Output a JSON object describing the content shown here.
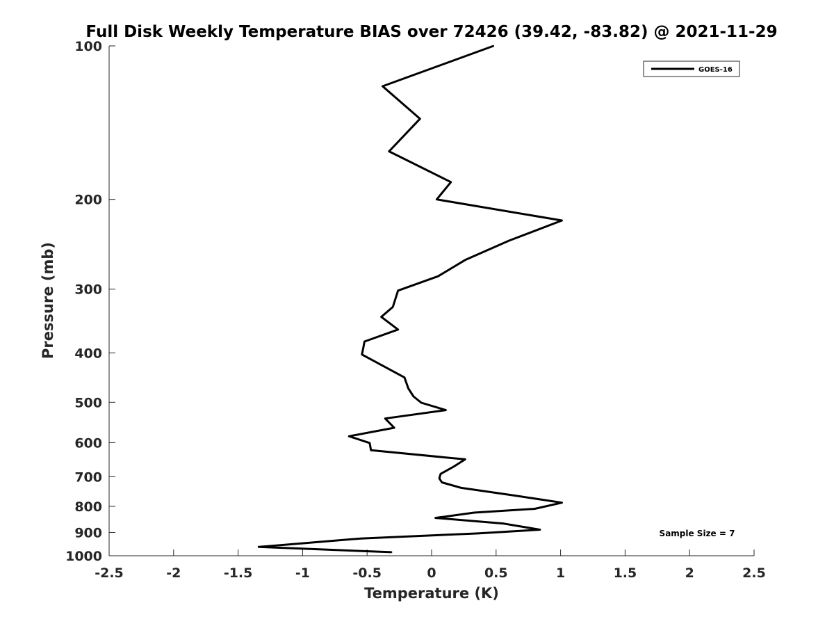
{
  "chart_data": {
    "type": "line",
    "title": "Full Disk Weekly Temperature BIAS over 72426 (39.42, -83.82) @ 2021-11-29",
    "xlabel": "Temperature (K)",
    "ylabel": "Pressure (mb)",
    "xlim": [
      -2.5,
      2.5
    ],
    "ylim": [
      100,
      1000
    ],
    "y_scale": "log",
    "y_reversed": true,
    "x_ticks": [
      "-2.5",
      "-2",
      "-1.5",
      "-1",
      "-0.5",
      "0",
      "0.5",
      "1",
      "1.5",
      "2",
      "2.5"
    ],
    "y_ticks": [
      "100",
      "200",
      "300",
      "400",
      "500",
      "600",
      "700",
      "800",
      "900",
      "1000"
    ],
    "grid": false,
    "legend_position": "top-right",
    "annotation": "Sample Size = 7",
    "series": [
      {
        "name": "GOES-16",
        "color": "#000000",
        "points": [
          {
            "x": 0.48,
            "y": 100
          },
          {
            "x": -0.38,
            "y": 120
          },
          {
            "x": -0.09,
            "y": 139
          },
          {
            "x": -0.33,
            "y": 161
          },
          {
            "x": 0.15,
            "y": 185
          },
          {
            "x": 0.04,
            "y": 200
          },
          {
            "x": 1.01,
            "y": 220
          },
          {
            "x": 0.6,
            "y": 241
          },
          {
            "x": 0.26,
            "y": 263
          },
          {
            "x": 0.05,
            "y": 283
          },
          {
            "x": -0.26,
            "y": 302
          },
          {
            "x": -0.3,
            "y": 325
          },
          {
            "x": -0.39,
            "y": 340
          },
          {
            "x": -0.26,
            "y": 360
          },
          {
            "x": -0.52,
            "y": 380
          },
          {
            "x": -0.54,
            "y": 403
          },
          {
            "x": -0.21,
            "y": 447
          },
          {
            "x": -0.18,
            "y": 470
          },
          {
            "x": -0.14,
            "y": 487
          },
          {
            "x": -0.08,
            "y": 501
          },
          {
            "x": 0.11,
            "y": 518
          },
          {
            "x": -0.36,
            "y": 538
          },
          {
            "x": -0.29,
            "y": 561
          },
          {
            "x": -0.64,
            "y": 583
          },
          {
            "x": -0.48,
            "y": 601
          },
          {
            "x": -0.47,
            "y": 621
          },
          {
            "x": 0.26,
            "y": 647
          },
          {
            "x": 0.17,
            "y": 669
          },
          {
            "x": 0.07,
            "y": 691
          },
          {
            "x": 0.06,
            "y": 705
          },
          {
            "x": 0.08,
            "y": 718
          },
          {
            "x": 0.23,
            "y": 736
          },
          {
            "x": 0.66,
            "y": 763
          },
          {
            "x": 1.01,
            "y": 787
          },
          {
            "x": 0.8,
            "y": 809
          },
          {
            "x": 0.33,
            "y": 823
          },
          {
            "x": 0.03,
            "y": 843
          },
          {
            "x": 0.56,
            "y": 865
          },
          {
            "x": 0.84,
            "y": 889
          },
          {
            "x": 0.36,
            "y": 904
          },
          {
            "x": -0.55,
            "y": 925
          },
          {
            "x": -1.34,
            "y": 961
          },
          {
            "x": -0.31,
            "y": 984
          }
        ]
      }
    ]
  }
}
